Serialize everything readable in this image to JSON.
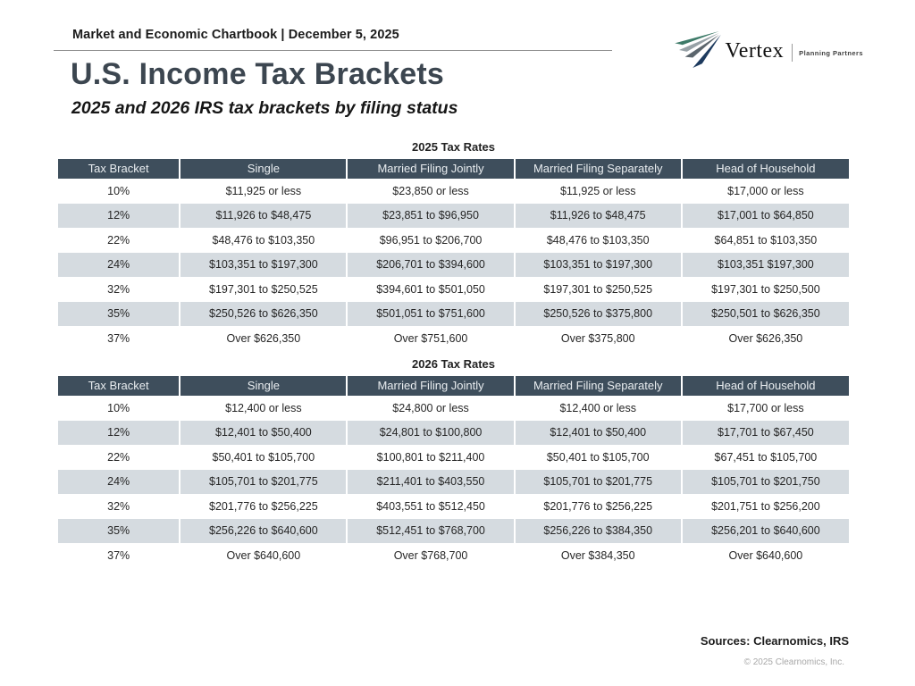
{
  "page": {
    "eyebrow": "Market and Economic Chartbook | December 5, 2025",
    "title": "U.S. Income Tax Brackets",
    "subtitle": "2025 and 2026 IRS tax brackets by filing status",
    "sources": "Sources: Clearnomics, IRS",
    "copyright": "© 2025 Clearnomics, Inc."
  },
  "logo": {
    "name": "Vertex",
    "tagline": "Planning Partners",
    "icon": "fan-stripes-icon"
  },
  "colors": {
    "table_header_bg": "#3e4e5c",
    "row_alt_bg": "#d5dbe0",
    "logo_green": "#3d7a68",
    "logo_gray": "#97a1a6",
    "logo_dkgray": "#5c666d",
    "logo_navy": "#1d3a5e"
  },
  "chart_data": [
    {
      "type": "table",
      "title": "2025 Tax Rates",
      "columns": [
        "Tax Bracket",
        "Single",
        "Married Filing Jointly",
        "Married Filing Separately",
        "Head of Household"
      ],
      "rows": [
        [
          "10%",
          "$11,925 or less",
          "$23,850 or less",
          "$11,925 or less",
          "$17,000 or less"
        ],
        [
          "12%",
          "$11,926 to $48,475",
          "$23,851 to $96,950",
          "$11,926 to $48,475",
          "$17,001 to $64,850"
        ],
        [
          "22%",
          "$48,476 to $103,350",
          "$96,951 to $206,700",
          "$48,476 to $103,350",
          "$64,851 to $103,350"
        ],
        [
          "24%",
          "$103,351 to $197,300",
          "$206,701 to $394,600",
          "$103,351 to $197,300",
          "$103,351 $197,300"
        ],
        [
          "32%",
          "$197,301 to $250,525",
          "$394,601 to $501,050",
          "$197,301 to $250,525",
          "$197,301 to $250,500"
        ],
        [
          "35%",
          "$250,526 to $626,350",
          "$501,051 to $751,600",
          "$250,526 to $375,800",
          "$250,501 to $626,350"
        ],
        [
          "37%",
          "Over $626,350",
          "Over $751,600",
          "Over $375,800",
          "Over $626,350"
        ]
      ]
    },
    {
      "type": "table",
      "title": "2026 Tax Rates",
      "columns": [
        "Tax Bracket",
        "Single",
        "Married Filing Jointly",
        "Married Filing Separately",
        "Head of Household"
      ],
      "rows": [
        [
          "10%",
          "$12,400 or less",
          "$24,800 or less",
          "$12,400 or less",
          "$17,700 or less"
        ],
        [
          "12%",
          "$12,401 to $50,400",
          "$24,801 to $100,800",
          "$12,401 to $50,400",
          "$17,701 to $67,450"
        ],
        [
          "22%",
          "$50,401 to $105,700",
          "$100,801 to $211,400",
          "$50,401 to $105,700",
          "$67,451 to $105,700"
        ],
        [
          "24%",
          "$105,701 to $201,775",
          "$211,401 to $403,550",
          "$105,701 to $201,775",
          "$105,701 to $201,750"
        ],
        [
          "32%",
          "$201,776 to $256,225",
          "$403,551 to $512,450",
          "$201,776 to $256,225",
          "$201,751 to $256,200"
        ],
        [
          "35%",
          "$256,226 to $640,600",
          "$512,451 to $768,700",
          "$256,226 to $384,350",
          "$256,201 to $640,600"
        ],
        [
          "37%",
          "Over $640,600",
          "Over $768,700",
          "Over $384,350",
          "Over $640,600"
        ]
      ]
    }
  ]
}
